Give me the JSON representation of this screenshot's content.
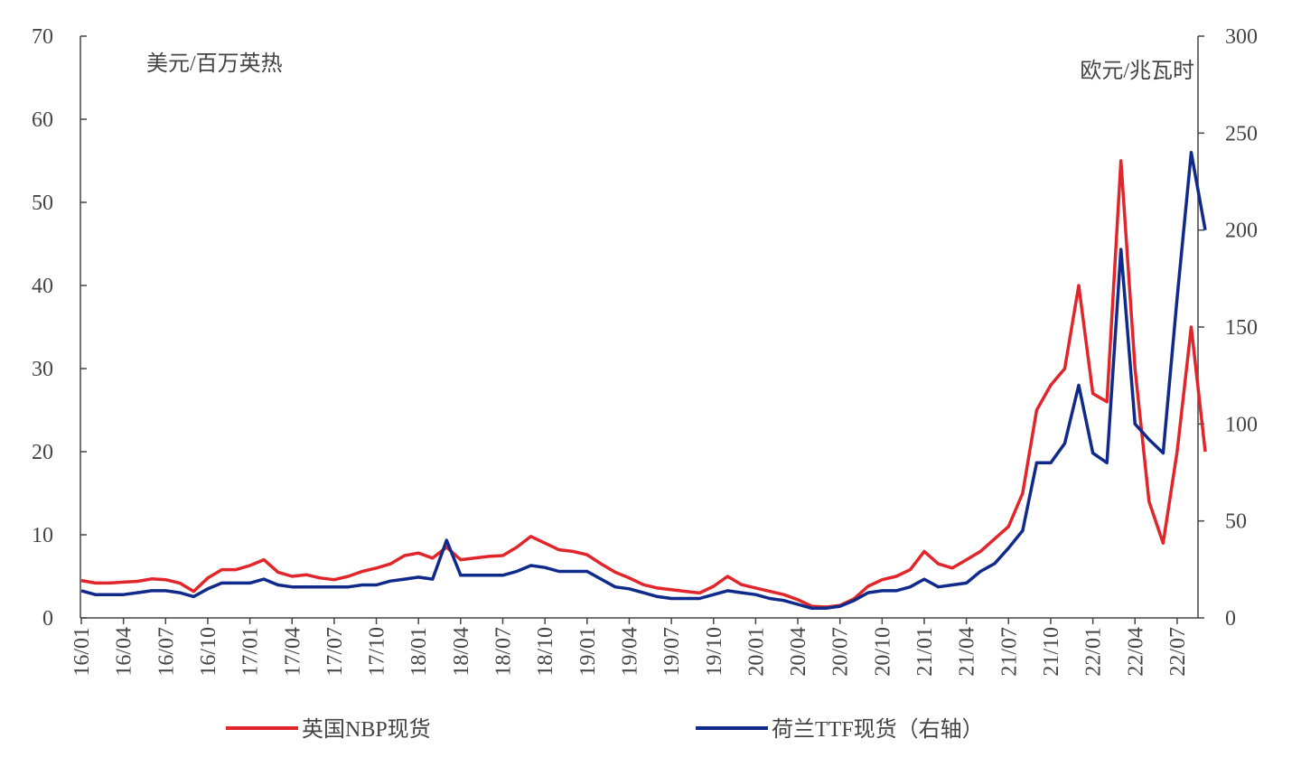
{
  "chart_data": {
    "type": "line",
    "y_axis_title": "美元/百万英热",
    "y2_axis_title": "欧元/兆瓦时",
    "categories": [
      "16/01",
      null,
      null,
      "16/04",
      null,
      null,
      "16/07",
      null,
      null,
      "16/10",
      null,
      null,
      "17/01",
      null,
      null,
      "17/04",
      null,
      null,
      "17/07",
      null,
      null,
      "17/10",
      null,
      null,
      "18/01",
      null,
      null,
      "18/04",
      null,
      null,
      "18/07",
      null,
      null,
      "18/10",
      null,
      null,
      "19/01",
      null,
      null,
      "19/04",
      null,
      null,
      "19/07",
      null,
      null,
      "19/10",
      null,
      null,
      "20/01",
      null,
      null,
      "20/04",
      null,
      null,
      "20/07",
      null,
      null,
      "20/10",
      null,
      null,
      "21/01",
      null,
      null,
      "21/04",
      null,
      null,
      "21/07",
      null,
      null,
      "21/10",
      null,
      null,
      "22/01",
      null,
      null,
      "22/04",
      null,
      null,
      "22/07",
      null,
      null
    ],
    "series": [
      {
        "name": "英国NBP现货",
        "color": "#e0262b",
        "values": [
          4.5,
          4.2,
          4.2,
          4.3,
          4.4,
          4.7,
          4.6,
          4.2,
          3.2,
          4.8,
          5.8,
          5.8,
          6.3,
          7.0,
          5.5,
          5.0,
          5.2,
          4.8,
          4.6,
          5.0,
          5.6,
          6.0,
          6.5,
          7.5,
          7.8,
          7.2,
          8.5,
          7.0,
          7.2,
          7.4,
          7.5,
          8.5,
          9.8,
          9.0,
          8.2,
          8.0,
          7.6,
          6.5,
          5.5,
          4.8,
          4.0,
          3.6,
          3.4,
          3.2,
          3.0,
          3.8,
          5.0,
          4.0,
          3.6,
          3.2,
          2.8,
          2.2,
          1.4,
          1.3,
          1.5,
          2.3,
          3.8,
          4.6,
          5.0,
          5.8,
          8.0,
          6.5,
          6.0,
          7.0,
          8.0,
          9.5,
          11.0,
          15.0,
          25.0,
          28.0,
          30.0,
          40.0,
          27.0,
          26.0,
          55.0,
          30.0,
          14.0,
          9.0,
          20.0,
          35.0,
          20.0
        ]
      },
      {
        "name": "荷兰TTF现货（右轴）",
        "color": "#0f2a8a",
        "axis": "y2",
        "values": [
          14,
          12,
          12,
          12,
          13,
          14,
          14,
          13,
          11,
          15,
          18,
          18,
          18,
          20,
          17,
          16,
          16,
          16,
          16,
          16,
          17,
          17,
          19,
          20,
          21,
          20,
          40,
          22,
          22,
          22,
          22,
          24,
          27,
          26,
          24,
          24,
          24,
          20,
          16,
          15,
          13,
          11,
          10,
          10,
          10,
          12,
          14,
          13,
          12,
          10,
          9,
          7,
          5,
          5,
          6,
          9,
          13,
          14,
          14,
          16,
          20,
          16,
          17,
          18,
          24,
          28,
          36,
          45,
          80,
          80,
          90,
          120,
          85,
          80,
          190,
          100,
          92,
          85,
          165,
          240,
          200
        ]
      }
    ],
    "ylim": [
      0,
      70
    ],
    "yticks": [
      0,
      10,
      20,
      30,
      40,
      50,
      60,
      70
    ],
    "y2lim": [
      0,
      300
    ],
    "y2ticks": [
      0,
      50,
      100,
      150,
      200,
      250,
      300
    ],
    "grid": false
  }
}
